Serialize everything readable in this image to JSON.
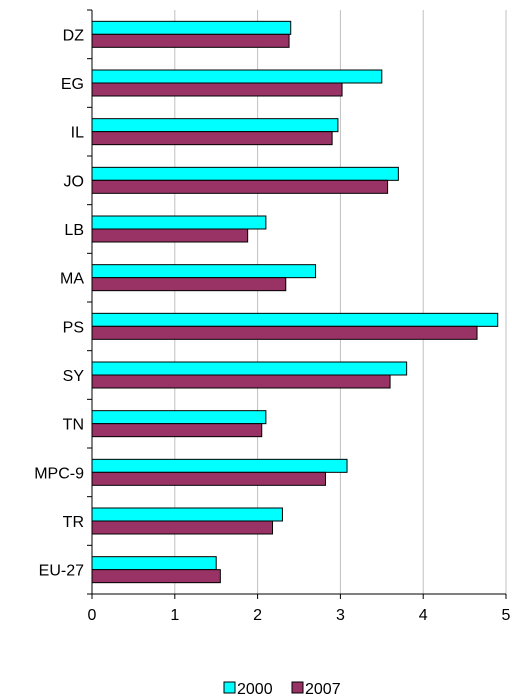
{
  "chart_data": {
    "type": "bar",
    "orientation": "horizontal",
    "categories": [
      "DZ",
      "EG",
      "IL",
      "JO",
      "LB",
      "MA",
      "PS",
      "SY",
      "TN",
      "MPC-9",
      "TR",
      "EU-27"
    ],
    "series": [
      {
        "name": "2000",
        "color": "#00FFFF",
        "values": [
          2.4,
          3.5,
          2.97,
          3.7,
          2.1,
          2.7,
          4.9,
          3.8,
          2.1,
          3.08,
          2.3,
          1.5
        ]
      },
      {
        "name": "2007",
        "color": "#993366",
        "values": [
          2.38,
          3.02,
          2.9,
          3.57,
          1.88,
          2.34,
          4.65,
          3.6,
          2.05,
          2.82,
          2.18,
          1.55
        ]
      }
    ],
    "xlim": [
      0,
      5
    ],
    "xticks": [
      "0",
      "1",
      "2",
      "3",
      "4",
      "5"
    ],
    "grid": "vertical",
    "legend_position": "bottom",
    "title": "",
    "xlabel": "",
    "ylabel": ""
  }
}
